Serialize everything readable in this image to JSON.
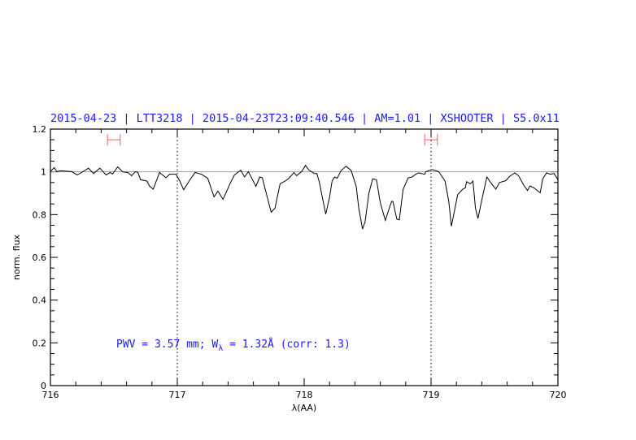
{
  "chart_data": {
    "type": "line",
    "title": "2015-04-23 | LTT3218 | 2015-04-23T23:09:40.546 | AM=1.01 | XSHOOTER | S5.0x11",
    "xlabel": "λ(AA)",
    "ylabel": "norm. flux",
    "xlim": [
      716,
      720
    ],
    "ylim": [
      0,
      1.2
    ],
    "xticks": [
      "716",
      "717",
      "718",
      "719",
      "720"
    ],
    "yticks": [
      "0",
      "0.2",
      "0.4",
      "0.6",
      "0.8",
      "1",
      "1.2"
    ],
    "grid": false,
    "reference_line": {
      "y": 1.0,
      "color": "#d88080"
    },
    "vertical_markers": [
      717,
      719
    ],
    "ranges": [
      {
        "from": 716.45,
        "to": 716.55,
        "y": 1.15,
        "color": "#f06060"
      },
      {
        "from": 718.95,
        "to": 719.05,
        "y": 1.15,
        "color": "#f06060"
      }
    ],
    "annotation": {
      "pwv": "PWV = 3.57 mm; W",
      "sub": "λ",
      "rest": " = 1.32Å (corr: 1.3)"
    },
    "colors": {
      "line": "#000000",
      "text": "#1a1aff"
    },
    "series": [
      {
        "x": [
          716.0,
          716.01,
          716.03,
          716.05,
          716.08,
          716.17,
          716.21,
          716.24,
          716.3,
          716.34,
          716.39,
          716.44,
          716.47,
          716.49,
          716.53,
          716.57,
          716.61,
          716.64,
          716.67,
          716.69,
          716.71,
          716.76,
          716.78,
          716.81,
          716.83,
          716.86,
          716.91,
          716.94,
          716.99,
          717.02,
          717.05,
          717.1,
          717.14,
          717.17,
          717.19,
          717.24,
          717.29,
          717.32,
          717.36,
          717.42,
          717.45,
          717.5,
          717.53,
          717.56,
          717.62,
          717.65,
          717.67,
          717.74,
          717.77,
          717.81,
          717.85,
          717.88,
          717.92,
          717.94,
          717.98,
          718.01,
          718.04,
          718.08,
          718.1,
          718.12,
          718.17,
          718.2,
          718.22,
          718.24,
          718.26,
          718.29,
          718.33,
          718.37,
          718.41,
          718.43,
          718.46,
          718.48,
          718.51,
          718.54,
          718.57,
          718.6,
          718.64,
          718.66,
          718.69,
          718.7,
          718.73,
          718.75,
          718.78,
          718.82,
          718.85,
          718.88,
          718.9,
          718.95,
          718.96,
          719.01,
          719.06,
          719.11,
          719.14,
          719.16,
          719.21,
          719.25,
          719.27,
          719.28,
          719.31,
          719.33,
          719.35,
          719.37,
          719.4,
          719.44,
          719.47,
          719.51,
          719.54,
          719.59,
          719.62,
          719.66,
          719.69,
          719.73,
          719.76,
          719.78,
          719.81,
          719.86,
          719.88,
          719.91,
          719.94,
          719.97,
          720.0
        ],
        "y": [
          1.0,
          1.008,
          1.02,
          1.001,
          1.005,
          1.001,
          0.985,
          0.995,
          1.017,
          0.992,
          1.017,
          0.985,
          0.997,
          0.99,
          1.023,
          1.0,
          0.997,
          0.982,
          1.001,
          0.997,
          0.963,
          0.957,
          0.934,
          0.919,
          0.95,
          0.997,
          0.972,
          0.989,
          0.989,
          0.957,
          0.916,
          0.963,
          0.997,
          0.992,
          0.989,
          0.97,
          0.883,
          0.91,
          0.871,
          0.95,
          0.985,
          1.008,
          0.976,
          1.001,
          0.932,
          0.976,
          0.972,
          0.811,
          0.83,
          0.944,
          0.957,
          0.97,
          0.997,
          0.982,
          1.001,
          1.03,
          1.007,
          0.992,
          0.992,
          0.95,
          0.802,
          0.881,
          0.957,
          0.976,
          0.97,
          1.005,
          1.026,
          1.007,
          0.932,
          0.83,
          0.732,
          0.767,
          0.9,
          0.967,
          0.963,
          0.855,
          0.773,
          0.811,
          0.862,
          0.861,
          0.779,
          0.776,
          0.919,
          0.972,
          0.976,
          0.989,
          0.995,
          0.989,
          1.001,
          1.01,
          1.001,
          0.957,
          0.862,
          0.745,
          0.894,
          0.919,
          0.925,
          0.954,
          0.944,
          0.957,
          0.83,
          0.782,
          0.868,
          0.976,
          0.95,
          0.919,
          0.95,
          0.959,
          0.979,
          0.995,
          0.982,
          0.938,
          0.913,
          0.934,
          0.925,
          0.902,
          0.967,
          0.995,
          0.989,
          0.992,
          0.963
        ]
      }
    ]
  }
}
